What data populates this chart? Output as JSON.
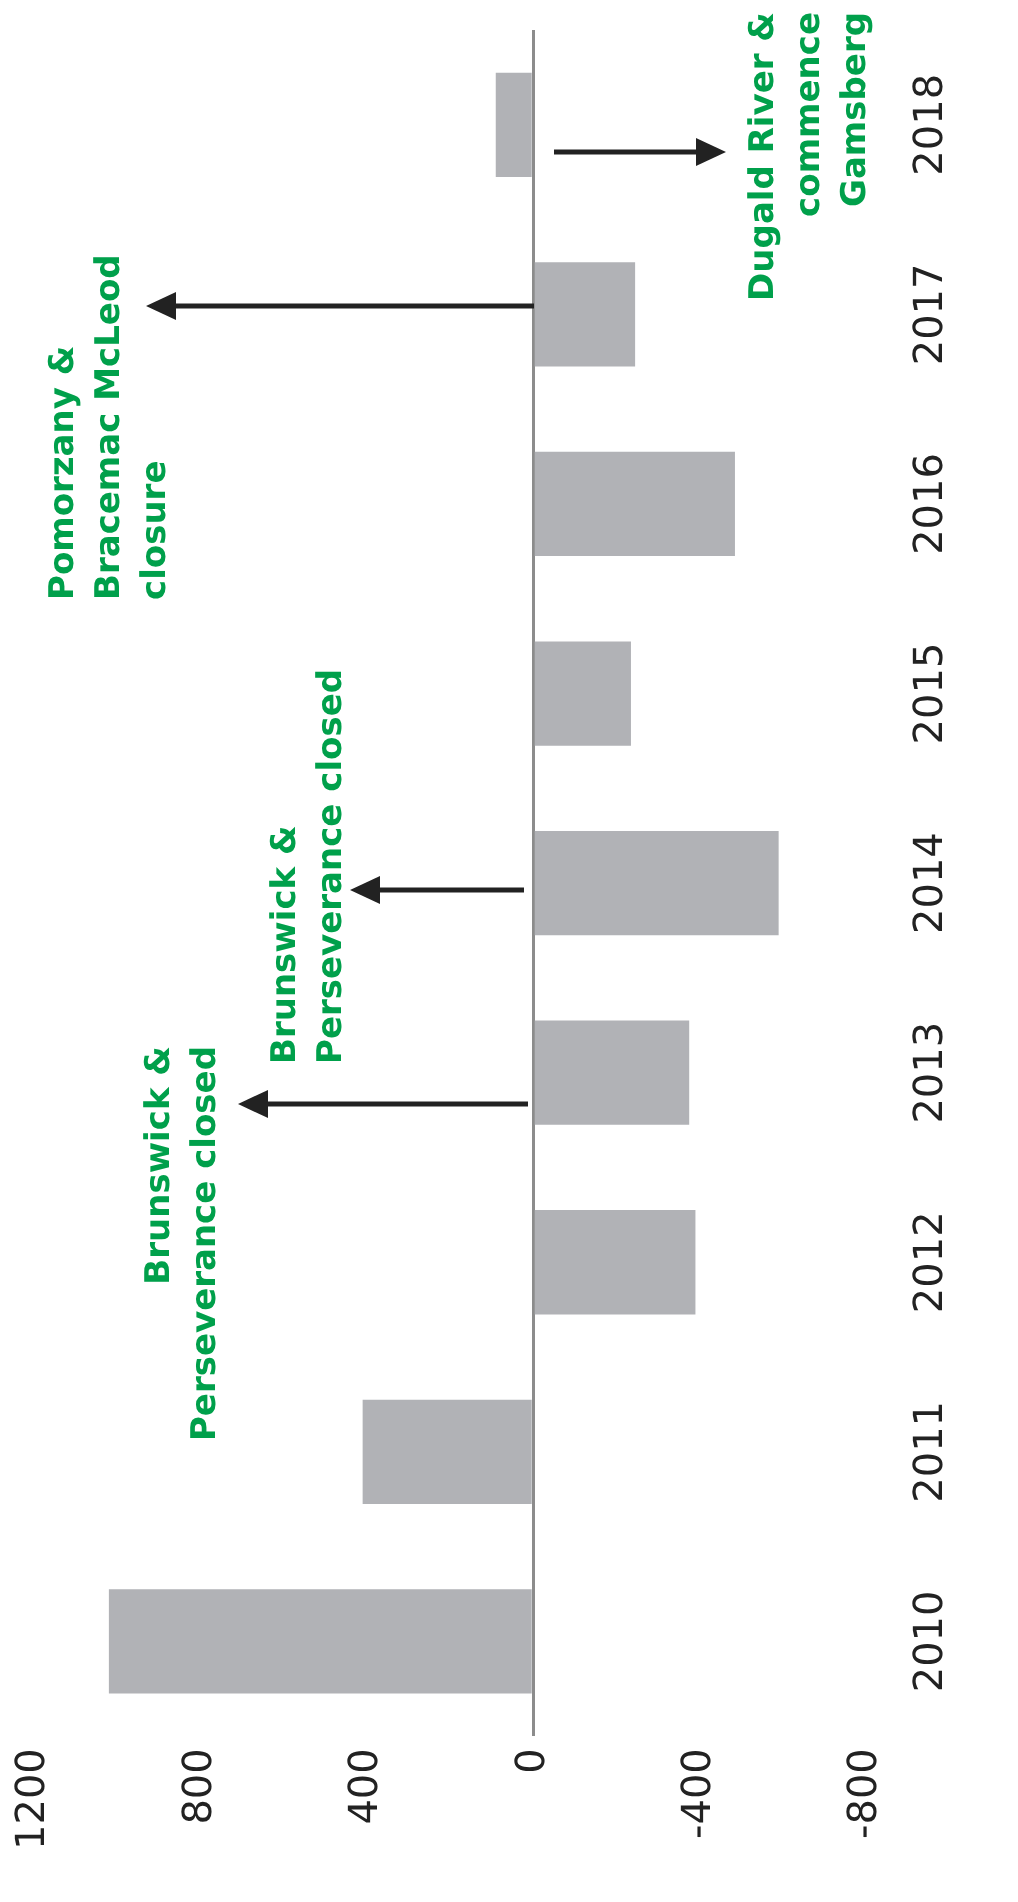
{
  "chart_data": {
    "type": "bar",
    "orientation": "horizontal",
    "categories": [
      "2018",
      "2017",
      "2016",
      "2015",
      "2014",
      "2013",
      "2012",
      "2011",
      "2010"
    ],
    "values": [
      90,
      -245,
      -485,
      -235,
      -590,
      -375,
      -390,
      410,
      1020
    ],
    "color": "#b1b2b6",
    "xlim": [
      1200,
      -800
    ],
    "xticks": [
      1200,
      800,
      400,
      0,
      -400,
      -800
    ],
    "annotations": [
      "Brunswick &\nPerseverance closed",
      "Brunswick &\nPerseverance closed",
      "Pomorzany &\nBracemac McLeod\nclosure",
      "Dugald River &\ncommence\nGamsberg"
    ]
  }
}
